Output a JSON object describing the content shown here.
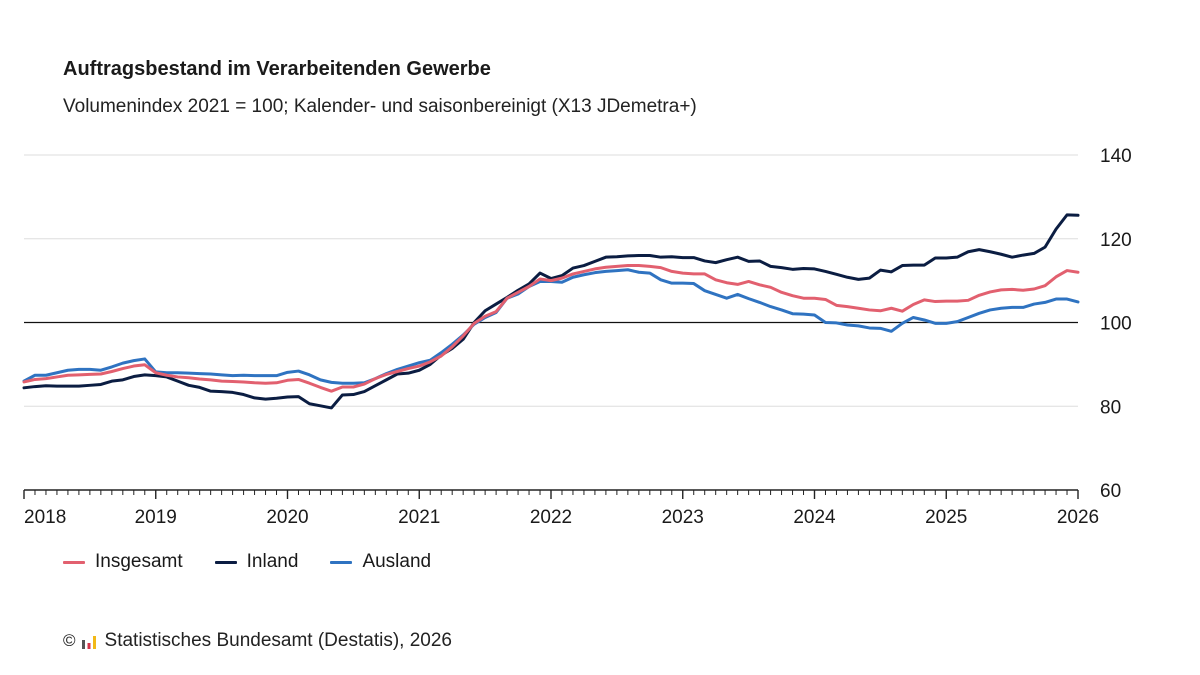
{
  "chart_data": {
    "type": "line",
    "title": "Auftragsbestand im Verarbeitenden Gewerbe",
    "subtitle": "Volumenindex 2021 = 100; Kalender- und saisonbereinigt (X13 JDemetra+)",
    "xlabel": "",
    "ylabel": "",
    "xlim": [
      "2018-01",
      "2026-01"
    ],
    "ylim": [
      60,
      140
    ],
    "xticks": [
      "2018",
      "2019",
      "2020",
      "2021",
      "2022",
      "2023",
      "2024",
      "2025",
      "2026"
    ],
    "yticks": [
      140,
      120,
      100,
      80,
      60
    ],
    "reference_line": 100,
    "grid": true,
    "legend": "bottom-left",
    "x": [
      "2018-01",
      "2018-02",
      "2018-03",
      "2018-04",
      "2018-05",
      "2018-06",
      "2018-07",
      "2018-08",
      "2018-09",
      "2018-10",
      "2018-11",
      "2018-12",
      "2019-01",
      "2019-02",
      "2019-03",
      "2019-04",
      "2019-05",
      "2019-06",
      "2019-07",
      "2019-08",
      "2019-09",
      "2019-10",
      "2019-11",
      "2019-12",
      "2020-01",
      "2020-02",
      "2020-03",
      "2020-04",
      "2020-05",
      "2020-06",
      "2020-07",
      "2020-08",
      "2020-09",
      "2020-10",
      "2020-11",
      "2020-12",
      "2021-01",
      "2021-02",
      "2021-03",
      "2021-04",
      "2021-05",
      "2021-06",
      "2021-07",
      "2021-08",
      "2021-09",
      "2021-10",
      "2021-11",
      "2021-12",
      "2022-01",
      "2022-02",
      "2022-03",
      "2022-04",
      "2022-05",
      "2022-06",
      "2022-07",
      "2022-08",
      "2022-09",
      "2022-10",
      "2022-11",
      "2022-12",
      "2023-01",
      "2023-02",
      "2023-03",
      "2023-04",
      "2023-05",
      "2023-06",
      "2023-07",
      "2023-08",
      "2023-09",
      "2023-10",
      "2023-11",
      "2023-12",
      "2024-01",
      "2024-02",
      "2024-03",
      "2024-04",
      "2024-05",
      "2024-06",
      "2024-07",
      "2024-08",
      "2024-09",
      "2024-10",
      "2024-11",
      "2024-12",
      "2025-01",
      "2025-02",
      "2025-03",
      "2025-04",
      "2025-05",
      "2025-06",
      "2025-07",
      "2025-08",
      "2025-09",
      "2025-10",
      "2025-11",
      "2025-12",
      "2026-01"
    ],
    "series": [
      {
        "name": "Insgesamt",
        "color": "#e2606f",
        "values": [
          85.8,
          86.4,
          86.6,
          87.0,
          87.4,
          87.5,
          87.6,
          87.7,
          88.3,
          89.0,
          89.6,
          89.9,
          88.0,
          87.4,
          87.0,
          86.8,
          86.5,
          86.3,
          86.0,
          85.9,
          85.8,
          85.6,
          85.5,
          85.6,
          86.2,
          86.4,
          85.5,
          84.5,
          83.6,
          84.6,
          84.6,
          85.3,
          86.6,
          87.6,
          88.3,
          89.0,
          89.6,
          90.6,
          92.0,
          94.2,
          96.8,
          99.8,
          101.5,
          102.6,
          105.8,
          107.2,
          108.6,
          110.4,
          110.0,
          110.6,
          111.6,
          112.2,
          112.8,
          113.2,
          113.4,
          113.6,
          113.6,
          113.4,
          113.1,
          112.2,
          111.8,
          111.6,
          111.6,
          110.2,
          109.5,
          109.1,
          109.8,
          109.0,
          108.4,
          107.2,
          106.4,
          105.8,
          105.8,
          105.5,
          104.1,
          103.8,
          103.4,
          103.0,
          102.8,
          103.4,
          102.7,
          104.3,
          105.4,
          105.0,
          105.1,
          105.1,
          105.3,
          106.5,
          107.3,
          107.8,
          107.9,
          107.7,
          108.0,
          108.8,
          110.9,
          112.4,
          112.0
        ]
      },
      {
        "name": "Inland",
        "color": "#0b1d42",
        "values": [
          84.4,
          84.7,
          84.9,
          84.8,
          84.8,
          84.8,
          85.0,
          85.2,
          86.0,
          86.3,
          87.1,
          87.5,
          87.3,
          87.0,
          86.0,
          85.0,
          84.5,
          83.6,
          83.5,
          83.3,
          82.8,
          82.0,
          81.7,
          81.9,
          82.2,
          82.3,
          80.6,
          80.1,
          79.6,
          82.7,
          82.8,
          83.5,
          84.9,
          86.3,
          87.7,
          87.9,
          88.6,
          90.0,
          92.2,
          93.8,
          96.0,
          100.0,
          102.8,
          104.4,
          106.0,
          107.7,
          109.2,
          111.8,
          110.5,
          111.2,
          113.0,
          113.6,
          114.6,
          115.6,
          115.7,
          115.9,
          116.0,
          116.0,
          115.6,
          115.7,
          115.5,
          115.5,
          114.7,
          114.3,
          115.0,
          115.6,
          114.6,
          114.7,
          113.4,
          113.1,
          112.7,
          112.9,
          112.8,
          112.2,
          111.5,
          110.8,
          110.3,
          110.6,
          112.5,
          112.1,
          113.6,
          113.7,
          113.7,
          115.4,
          115.4,
          115.6,
          116.9,
          117.4,
          116.9,
          116.3,
          115.6,
          116.1,
          116.5,
          118.0,
          122.3,
          125.7,
          125.6
        ]
      },
      {
        "name": "Ausland",
        "color": "#2f73c1",
        "values": [
          86.0,
          87.4,
          87.4,
          88.0,
          88.6,
          88.8,
          88.8,
          88.6,
          89.4,
          90.3,
          90.9,
          91.3,
          88.2,
          88.0,
          88.0,
          87.9,
          87.8,
          87.7,
          87.5,
          87.3,
          87.4,
          87.3,
          87.3,
          87.3,
          88.1,
          88.4,
          87.5,
          86.3,
          85.7,
          85.5,
          85.5,
          85.6,
          86.6,
          87.8,
          88.8,
          89.6,
          90.4,
          91.0,
          92.8,
          94.8,
          97.0,
          99.6,
          101.2,
          102.4,
          105.8,
          106.8,
          108.6,
          109.8,
          109.8,
          109.6,
          110.8,
          111.4,
          111.9,
          112.2,
          112.4,
          112.6,
          112.0,
          111.8,
          110.2,
          109.4,
          109.4,
          109.3,
          107.6,
          106.7,
          105.8,
          106.7,
          105.7,
          104.8,
          103.8,
          103.0,
          102.1,
          102.0,
          101.8,
          100.0,
          99.9,
          99.4,
          99.2,
          98.7,
          98.6,
          97.9,
          99.8,
          101.2,
          100.6,
          99.8,
          99.8,
          100.2,
          101.2,
          102.2,
          103.0,
          103.4,
          103.6,
          103.6,
          104.4,
          104.8,
          105.6,
          105.6,
          104.9
        ]
      }
    ]
  },
  "footer": {
    "copyright": "©",
    "text": "Statistisches Bundesamt (Destatis), 2026"
  },
  "icons": {
    "logo": "destatis-logo"
  }
}
